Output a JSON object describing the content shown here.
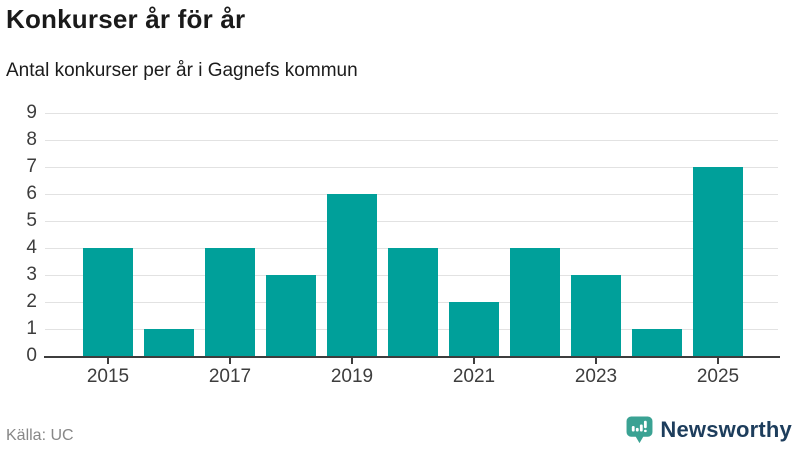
{
  "header": {
    "title": "Konkurser år för år",
    "subtitle": "Antal konkurser per år i Gagnefs kommun"
  },
  "chart_data": {
    "type": "bar",
    "title": "Konkurser år för år",
    "subtitle": "Antal konkurser per år i Gagnefs kommun",
    "categories": [
      "2015",
      "2016",
      "2017",
      "2018",
      "2019",
      "2020",
      "2021",
      "2022",
      "2023",
      "2024",
      "2025"
    ],
    "values": [
      4,
      1,
      4,
      3,
      6,
      4,
      2,
      4,
      3,
      1,
      7
    ],
    "xlabel": "",
    "ylabel": "",
    "ylim": [
      0,
      9
    ],
    "y_ticks": [
      0,
      1,
      2,
      3,
      4,
      5,
      6,
      7,
      8,
      9
    ],
    "x_tick_labels": [
      "2015",
      "2017",
      "2019",
      "2021",
      "2023",
      "2025"
    ],
    "grid": true,
    "legend": false,
    "bar_color": "#00a09a"
  },
  "footer": {
    "source": "Källa: UC",
    "logo_text": "Newsworthy"
  },
  "colors": {
    "bar": "#00a09a",
    "axis": "#3d3d3d",
    "gridline": "#e2e2e2",
    "title": "#1a1a1a",
    "source": "#878787",
    "logo_text": "#1d3d5c",
    "logo_icon": "#3aa293"
  }
}
